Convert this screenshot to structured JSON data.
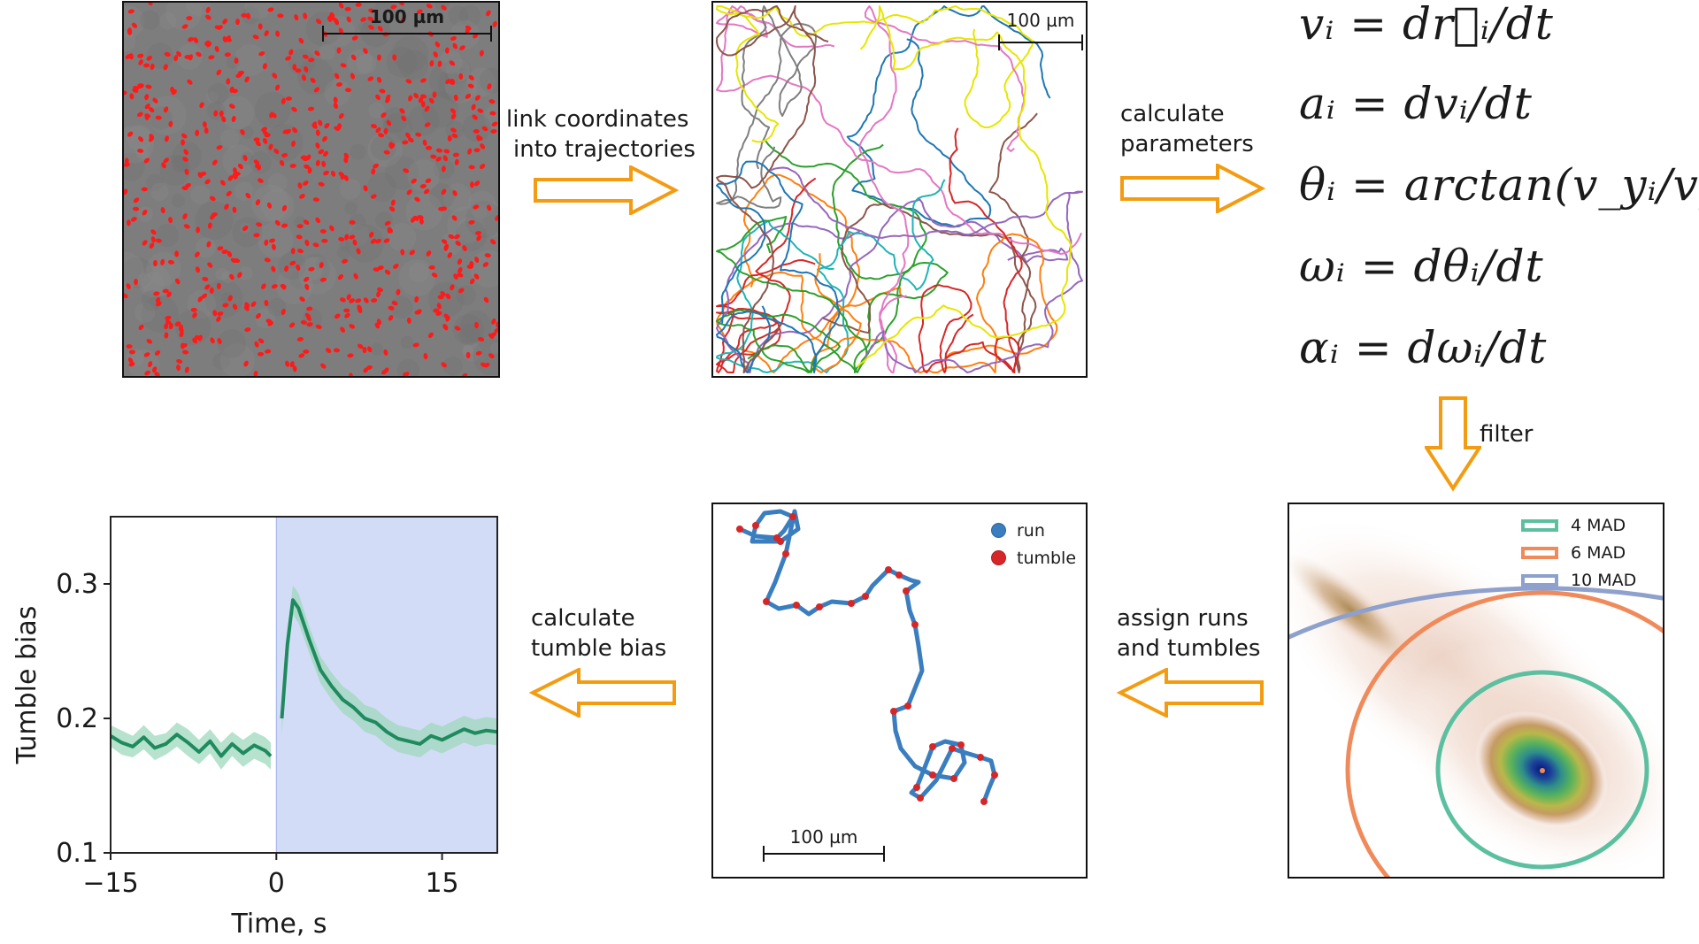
{
  "steps": {
    "link": [
      "link coordinates",
      "into trajectories"
    ],
    "calculate_params": [
      "calculate",
      "parameters"
    ],
    "filter": "filter",
    "assign": [
      "assign runs",
      "and tumbles"
    ],
    "tumble_bias": [
      "calculate",
      "tumble bias"
    ]
  },
  "scale_bar_label": "100 µm",
  "equations": [
    "vᵢ = dr⃗ᵢ/dt",
    "aᵢ = dvᵢ/dt",
    "θᵢ = arctan(v_yᵢ/v_xᵢ)",
    "ωᵢ = dθᵢ/dt",
    "αᵢ = dωᵢ/dt"
  ],
  "run_tumble_legend": [
    {
      "label": "run",
      "color": "#3a7ebf"
    },
    {
      "label": "tumble",
      "color": "#d62728"
    }
  ],
  "mad_legend": [
    {
      "label": "4 MAD",
      "color": "#5cc0a0"
    },
    {
      "label": "6 MAD",
      "color": "#f08a5a"
    },
    {
      "label": "10 MAD",
      "color": "#8ea0cc"
    }
  ],
  "colors": {
    "arrow_fill": "#ffffff",
    "arrow_stroke": "#f39c12",
    "line": "#1e8a5e",
    "band": "#9fd8bc",
    "shade": "#d3dcf6"
  },
  "chart_data": {
    "type": "line",
    "title": "",
    "xlabel": "Time, s",
    "ylabel": "Tumble bias",
    "xlim": [
      -15,
      20
    ],
    "ylim": [
      0.1,
      0.35
    ],
    "xticks": [
      -15,
      0,
      15
    ],
    "xtick_labels": [
      "−15",
      "0",
      "15"
    ],
    "yticks": [
      0.1,
      0.2,
      0.3
    ],
    "ytick_labels": [
      "0.1",
      "0.2",
      "0.3"
    ],
    "shaded_region": [
      0,
      20
    ],
    "series": [
      {
        "segments": [
          {
            "x": [
              -15,
              -14,
              -13,
              -12,
              -11,
              -10,
              -9,
              -8,
              -7,
              -6,
              -5,
              -4,
              -3,
              -2,
              -1,
              -0.5
            ],
            "y": [
              0.187,
              0.182,
              0.179,
              0.186,
              0.178,
              0.181,
              0.188,
              0.182,
              0.175,
              0.183,
              0.172,
              0.181,
              0.174,
              0.18,
              0.176,
              0.172
            ],
            "err": [
              0.008,
              0.009,
              0.008,
              0.009,
              0.009,
              0.008,
              0.009,
              0.01,
              0.009,
              0.009,
              0.01,
              0.009,
              0.01,
              0.01,
              0.01,
              0.01
            ]
          },
          {
            "x": [
              0.5,
              1,
              1.5,
              2,
              3,
              4,
              5,
              6,
              7,
              8,
              9,
              10,
              11,
              12,
              13,
              14,
              15,
              16,
              17,
              18,
              19,
              20
            ],
            "y": [
              0.2,
              0.255,
              0.288,
              0.282,
              0.258,
              0.236,
              0.224,
              0.214,
              0.208,
              0.2,
              0.197,
              0.19,
              0.185,
              0.183,
              0.181,
              0.187,
              0.184,
              0.188,
              0.192,
              0.189,
              0.191,
              0.19
            ],
            "err": [
              0.012,
              0.011,
              0.011,
              0.011,
              0.01,
              0.01,
              0.01,
              0.01,
              0.01,
              0.01,
              0.01,
              0.01,
              0.01,
              0.01,
              0.01,
              0.01,
              0.01,
              0.01,
              0.01,
              0.01,
              0.01,
              0.01
            ]
          }
        ]
      }
    ]
  }
}
